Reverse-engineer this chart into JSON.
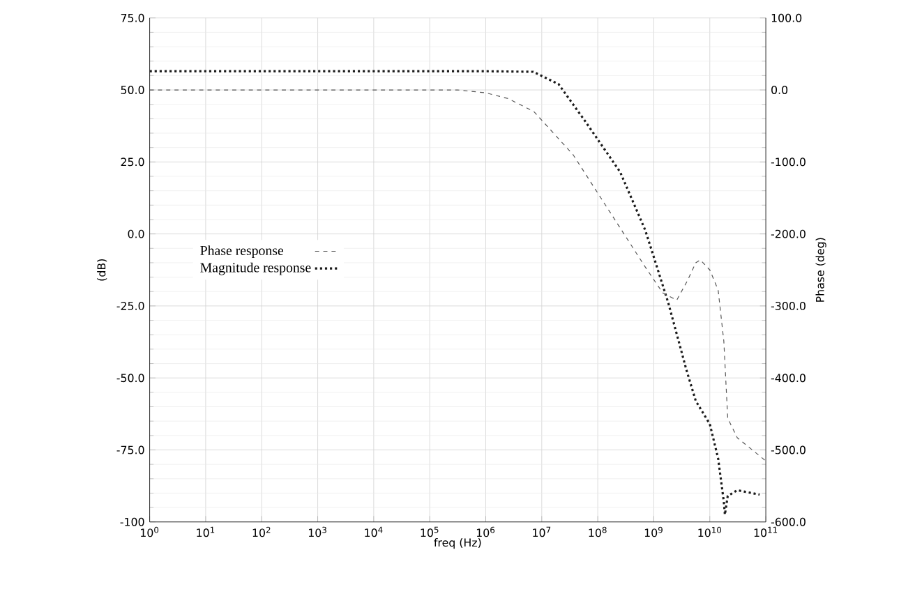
{
  "chart_data": {
    "type": "line",
    "xlabel": "freq (Hz)",
    "ylabel": "(dB)",
    "y2label": "Phase (deg)",
    "log": "x",
    "grid": true,
    "legend": "left",
    "marker": "none",
    "xlim": [
      1,
      100000000000.0
    ],
    "xticks": [
      {
        "value": 1,
        "label": "10$^{0}$"
      },
      {
        "value": 10,
        "label": "10$^{1}$"
      },
      {
        "value": 100,
        "label": "10$^{2}$"
      },
      {
        "value": 1000,
        "label": "10$^{3}$"
      },
      {
        "value": 10000.0,
        "label": "10$^{4}$"
      },
      {
        "value": 100000.0,
        "label": "10$^{5}$"
      },
      {
        "value": 1000000.0,
        "label": "10$^{6}$"
      },
      {
        "value": 10000000.0,
        "label": "10$^{7}$"
      },
      {
        "value": 100000000.0,
        "label": "10$^{8}$"
      },
      {
        "value": 1000000000.0,
        "label": "10$^{9}$"
      },
      {
        "value": 10000000000.0,
        "label": "10$^{10}$"
      },
      {
        "value": 100000000000.0,
        "label": "10$^{11}$"
      }
    ],
    "ylim": [
      -100,
      75
    ],
    "yticks": [
      {
        "value": 75,
        "label": "75.0"
      },
      {
        "value": 50,
        "label": "50.0"
      },
      {
        "value": 25,
        "label": "25.0"
      },
      {
        "value": 0,
        "label": "0.0"
      },
      {
        "value": -25,
        "label": "-25.0"
      },
      {
        "value": -50,
        "label": "-50.0"
      },
      {
        "value": -75,
        "label": "-75.0"
      },
      -100
    ],
    "y2lim": [
      -600,
      100
    ],
    "y2ticks": [
      {
        "value": 100,
        "label": "100.0"
      },
      {
        "value": 0,
        "label": "0.0"
      },
      {
        "value": -100,
        "label": "-100.0"
      },
      {
        "value": -200,
        "label": "-200.0"
      },
      {
        "value": -300,
        "label": "-300.0"
      },
      {
        "value": -400,
        "label": "-400.0"
      },
      {
        "value": -500,
        "label": "-500.0"
      },
      {
        "value": -600,
        "label": "-600.0"
      }
    ],
    "series": [
      {
        "name": "Phase response",
        "color": "#555555",
        "axis": "y2",
        "line_style": "dashed",
        "x": [
          1,
          316000.0,
          1000000.0,
          2510000.0,
          7240000.0,
          36300000.0,
          692000000.0,
          1450000000.0,
          2570000000.0,
          3980000000.0,
          5620000000.0,
          6760000000.0,
          10000000000.0,
          14100000000.0,
          17800000000.0,
          20900000000.0,
          30900000000.0,
          95500000000.0
        ],
        "values": [
          0,
          0,
          -4,
          -12,
          -30,
          -90,
          -245,
          -282,
          -292,
          -265,
          -240,
          -236,
          -250,
          -278,
          -349,
          -456,
          -483,
          -514
        ]
      },
      {
        "name": "Magnitude response",
        "color": "#1a1a1a",
        "line_style": "dotted",
        "x": [
          1,
          1000000.0,
          7080000.0,
          20000000.0,
          60300000.0,
          251000000.0,
          708000000.0,
          1820000000.0,
          3800000000.0,
          5620000000.0,
          10000000000.0,
          14100000000.0,
          17800000000.0,
          18600000000.0,
          20900000000.0,
          30900000000.0,
          77600000000.0
        ],
        "values": [
          56.5,
          56.5,
          56.3,
          52,
          39,
          21.5,
          1.2,
          -24,
          -47,
          -58,
          -66,
          -78,
          -93,
          -97.5,
          -91,
          -89,
          -90.5
        ]
      }
    ]
  }
}
